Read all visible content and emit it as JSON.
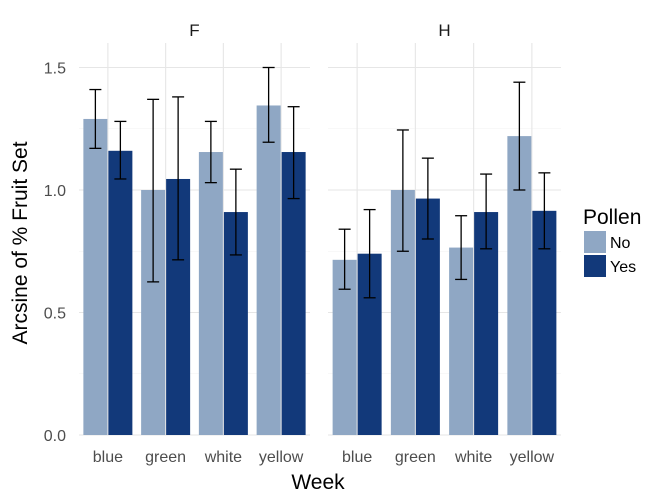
{
  "chart_data": {
    "type": "bar",
    "facets": [
      "F",
      "H"
    ],
    "categories": [
      "blue",
      "green",
      "white",
      "yellow"
    ],
    "xlabel": "Week",
    "ylabel": "Arcsine of % Fruit Set",
    "ylim": [
      0,
      1.6
    ],
    "yticks": [
      0.0,
      0.5,
      1.0,
      1.5
    ],
    "ytick_labels": [
      "0.0",
      "0.5",
      "1.0",
      "1.5"
    ],
    "grid": true,
    "legend": {
      "title": "Pollen",
      "position": "right"
    },
    "series": [
      {
        "name": "No",
        "color": "#8fa7c4",
        "values": {
          "F": [
            1.29,
            1.0,
            1.155,
            1.345
          ],
          "H": [
            0.715,
            1.0,
            0.765,
            1.22
          ]
        },
        "error_low": {
          "F": [
            1.17,
            0.625,
            1.03,
            1.195
          ],
          "H": [
            0.595,
            0.75,
            0.635,
            1.0
          ]
        },
        "error_high": {
          "F": [
            1.41,
            1.37,
            1.28,
            1.5
          ],
          "H": [
            0.84,
            1.245,
            0.895,
            1.44
          ]
        }
      },
      {
        "name": "Yes",
        "color": "#12397a",
        "values": {
          "F": [
            1.16,
            1.045,
            0.91,
            1.155
          ],
          "H": [
            0.74,
            0.965,
            0.91,
            0.915
          ]
        },
        "error_low": {
          "F": [
            1.045,
            0.715,
            0.735,
            0.965
          ],
          "H": [
            0.56,
            0.8,
            0.76,
            0.76
          ]
        },
        "error_high": {
          "F": [
            1.28,
            1.38,
            1.085,
            1.34
          ],
          "H": [
            0.92,
            1.13,
            1.065,
            1.07
          ]
        }
      }
    ]
  }
}
